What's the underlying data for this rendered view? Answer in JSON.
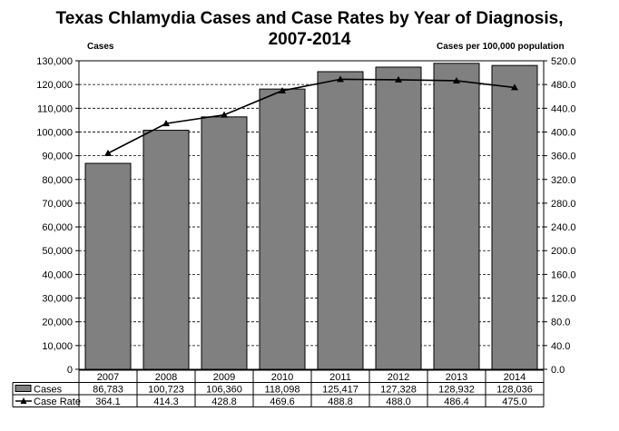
{
  "chart_data": {
    "type": "bar",
    "title_line1": "Texas Chlamydia Cases and Case Rates by Year of Diagnosis,",
    "title_line2": "2007-2014",
    "ylabel_left": "Cases",
    "ylabel_right": "Cases per 100,000 population",
    "categories": [
      "2007",
      "2008",
      "2009",
      "2010",
      "2011",
      "2012",
      "2013",
      "2014"
    ],
    "ylim_left": [
      0,
      130000
    ],
    "ylim_right": [
      0,
      520
    ],
    "left_ticks": [
      "0",
      "10,000",
      "20,000",
      "30,000",
      "40,000",
      "50,000",
      "60,000",
      "70,000",
      "80,000",
      "90,000",
      "100,000",
      "110,000",
      "120,000",
      "130,000"
    ],
    "right_ticks": [
      "0.0",
      "40.0",
      "80.0",
      "120.0",
      "160.0",
      "200.0",
      "240.0",
      "280.0",
      "320.0",
      "360.0",
      "400.0",
      "440.0",
      "480.0",
      "520.0"
    ],
    "grid": "horizontal dashed",
    "legend": "data table below chart",
    "series": [
      {
        "name": "Cases",
        "type": "bar",
        "axis": "left",
        "color": "#808080",
        "values": [
          86783,
          100723,
          106360,
          118098,
          125417,
          127328,
          128932,
          128036
        ],
        "labels": [
          "86,783",
          "100,723",
          "106,360",
          "118,098",
          "125,417",
          "127,328",
          "128,932",
          "128,036"
        ]
      },
      {
        "name": "Case Rate",
        "type": "line",
        "axis": "right",
        "marker": "triangle",
        "color": "#000000",
        "values": [
          364.1,
          414.3,
          428.8,
          469.6,
          488.8,
          488.0,
          486.4,
          475.0
        ],
        "labels": [
          "364.1",
          "414.3",
          "428.8",
          "469.6",
          "488.8",
          "488.0",
          "486.4",
          "475.0"
        ]
      }
    ]
  }
}
